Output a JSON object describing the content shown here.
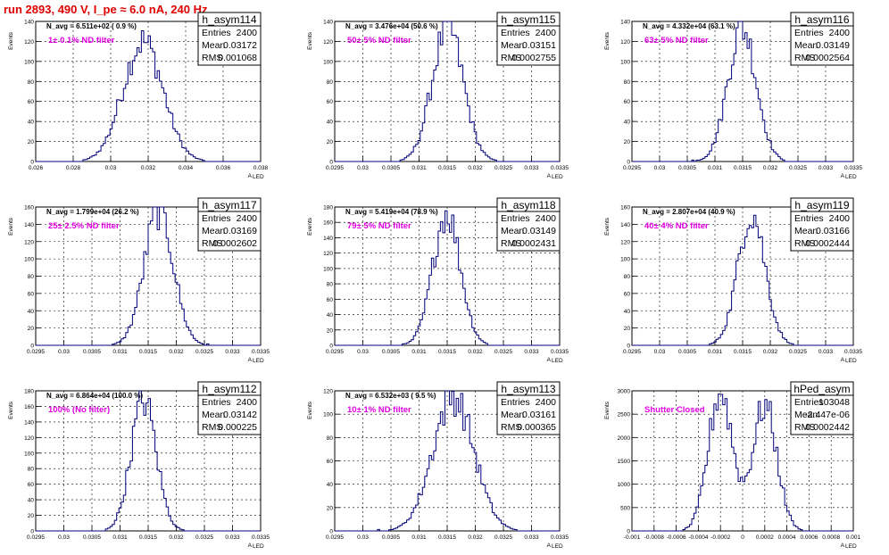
{
  "header": {
    "title": "run 2893,   490 V, I_pe ≈ 6.0 nA, 240 Hz"
  },
  "colors": {
    "histogram_line": "#00007a",
    "title_text": "#e00000",
    "filter_label": "#e000e0",
    "grid": "#000000"
  },
  "stats_labels": {
    "entries": "Entries",
    "mean": "Mean",
    "rms": "RMS"
  },
  "chart_data": [
    {
      "type": "histogram",
      "name": "h_asym114",
      "ylabel": "Events",
      "xlabel": "A",
      "xlabel_sub": "LED",
      "xlim": [
        0.026,
        0.038
      ],
      "ylim": [
        0,
        140
      ],
      "xticks": [
        "0.026",
        "0.028",
        "0.03",
        "0.032",
        "0.034",
        "0.036",
        "0.038"
      ],
      "yticks": [
        "0",
        "20",
        "40",
        "60",
        "80",
        "100",
        "120",
        "140"
      ],
      "stats": {
        "entries": "2400",
        "mean": "0.03172",
        "rms": "0.001068"
      },
      "n_avg": "N_avg = 6.511e+02 ( 0.9 %)",
      "filter": "1± 0.1% ND filter",
      "mean": 0.03172,
      "rms": 0.001068,
      "peak": 125,
      "grid": true
    },
    {
      "type": "histogram",
      "name": "h_asym115",
      "ylabel": "Events",
      "xlabel": "A",
      "xlabel_sub": "LED",
      "xlim": [
        0.0295,
        0.0335
      ],
      "ylim": [
        0,
        140
      ],
      "xticks": [
        "0.0295",
        "0.03",
        "0.0305",
        "0.031",
        "0.0315",
        "0.032",
        "0.0325",
        "0.033",
        "0.0335"
      ],
      "yticks": [
        "0",
        "20",
        "40",
        "60",
        "80",
        "100",
        "120",
        "140"
      ],
      "stats": {
        "entries": "2400",
        "mean": "0.03151",
        "rms": "0.0002755"
      },
      "n_avg": "N_avg = 3.476e+04 (50.6 %)",
      "filter": "50± 5% ND filter",
      "mean": 0.03151,
      "rms": 0.0002755,
      "peak": 140,
      "grid": true
    },
    {
      "type": "histogram",
      "name": "h_asym116",
      "ylabel": "Events",
      "xlabel": "A",
      "xlabel_sub": "LED",
      "xlim": [
        0.0295,
        0.0335
      ],
      "ylim": [
        0,
        140
      ],
      "xticks": [
        "0.0295",
        "0.03",
        "0.0305",
        "0.031",
        "0.0315",
        "0.032",
        "0.0325",
        "0.033",
        "0.0335"
      ],
      "yticks": [
        "0",
        "20",
        "40",
        "60",
        "80",
        "100",
        "120",
        "140"
      ],
      "stats": {
        "entries": "2400",
        "mean": "0.03149",
        "rms": "0.0002564"
      },
      "n_avg": "N_avg = 4.332e+04 (63.1 %)",
      "filter": "63± 5% ND filter",
      "mean": 0.03149,
      "rms": 0.0002564,
      "peak": 140,
      "grid": true
    },
    {
      "type": "histogram",
      "name": "h_asym117",
      "ylabel": "Events",
      "xlabel": "A",
      "xlabel_sub": "LED",
      "xlim": [
        0.0295,
        0.0335
      ],
      "ylim": [
        0,
        160
      ],
      "xticks": [
        "0.0295",
        "0.03",
        "0.0305",
        "0.031",
        "0.0315",
        "0.032",
        "0.0325",
        "0.033",
        "0.0335"
      ],
      "yticks": [
        "0",
        "20",
        "40",
        "60",
        "80",
        "100",
        "120",
        "140",
        "160"
      ],
      "stats": {
        "entries": "2400",
        "mean": "0.03169",
        "rms": "0.0002602"
      },
      "n_avg": "N_avg = 1.799e+04 (26.2 %)",
      "filter": "25± 2.5% ND filter",
      "mean": 0.03169,
      "rms": 0.0002602,
      "peak": 162,
      "grid": true
    },
    {
      "type": "histogram",
      "name": "h_asym118",
      "ylabel": "Events",
      "xlabel": "A",
      "xlabel_sub": "LED",
      "xlim": [
        0.0295,
        0.0335
      ],
      "ylim": [
        0,
        180
      ],
      "xticks": [
        "0.0295",
        "0.03",
        "0.0305",
        "0.031",
        "0.0315",
        "0.032",
        "0.0325",
        "0.033",
        "0.0335"
      ],
      "yticks": [
        "0",
        "20",
        "40",
        "60",
        "80",
        "100",
        "120",
        "140",
        "160",
        "180"
      ],
      "stats": {
        "entries": "2400",
        "mean": "0.03149",
        "rms": "0.0002431"
      },
      "n_avg": "N_avg = 5.419e+04 (78.9 %)",
      "filter": "79± 5% ND filter",
      "mean": 0.03149,
      "rms": 0.0002431,
      "peak": 180,
      "grid": true
    },
    {
      "type": "histogram",
      "name": "h_asym119",
      "ylabel": "Events",
      "xlabel": "A",
      "xlabel_sub": "LED",
      "xlim": [
        0.0295,
        0.0335
      ],
      "ylim": [
        0,
        160
      ],
      "xticks": [
        "0.0295",
        "0.03",
        "0.0305",
        "0.031",
        "0.0315",
        "0.032",
        "0.0325",
        "0.033",
        "0.0335"
      ],
      "yticks": [
        "0",
        "20",
        "40",
        "60",
        "80",
        "100",
        "120",
        "140",
        "160"
      ],
      "stats": {
        "entries": "2400",
        "mean": "0.03166",
        "rms": "0.0002444"
      },
      "n_avg": "N_avg = 2.807e+04 (40.9 %)",
      "filter": "40± 4% ND filter",
      "mean": 0.03166,
      "rms": 0.0002444,
      "peak": 160,
      "grid": true
    },
    {
      "type": "histogram",
      "name": "h_asym112",
      "ylabel": "Events",
      "xlabel": "A",
      "xlabel_sub": "LED",
      "xlim": [
        0.0295,
        0.0335
      ],
      "ylim": [
        0,
        180
      ],
      "xticks": [
        "0.0295",
        "0.03",
        "0.0305",
        "0.031",
        "0.0315",
        "0.032",
        "0.0325",
        "0.033",
        "0.0335"
      ],
      "yticks": [
        "0",
        "20",
        "40",
        "60",
        "80",
        "100",
        "120",
        "140",
        "160",
        "180"
      ],
      "stats": {
        "entries": "2400",
        "mean": "0.03142",
        "rms": "0.000225"
      },
      "n_avg": "N_avg = 6.864e+04 (100.0 %)",
      "filter": "100% (No filter)",
      "mean": 0.03142,
      "rms": 0.000225,
      "peak": 175,
      "grid": true
    },
    {
      "type": "histogram",
      "name": "h_asym113",
      "ylabel": "Events",
      "xlabel": "A",
      "xlabel_sub": "LED",
      "xlim": [
        0.0295,
        0.0335
      ],
      "ylim": [
        0,
        120
      ],
      "xticks": [
        "0.0295",
        "0.03",
        "0.0305",
        "0.031",
        "0.0315",
        "0.032",
        "0.0325",
        "0.033",
        "0.0335"
      ],
      "yticks": [
        "0",
        "20",
        "40",
        "60",
        "80",
        "100",
        "120"
      ],
      "stats": {
        "entries": "2400",
        "mean": "0.03161",
        "rms": "0.000365"
      },
      "n_avg": "N_avg = 6.532e+03 ( 9.5 %)",
      "filter": "10± 1% ND filter",
      "mean": 0.03161,
      "rms": 0.000365,
      "peak": 120,
      "grid": true
    },
    {
      "type": "histogram",
      "name": "hPed_asym",
      "ylabel": "Events",
      "xlabel": "A",
      "xlabel_sub": "LED",
      "xlim": [
        -0.001,
        0.001
      ],
      "ylim": [
        0,
        3000
      ],
      "xticks": [
        "-0.001",
        "-0.0008",
        "-0.0006",
        "-0.0004",
        "-0.0002",
        "0",
        "0.0002",
        "0.0004",
        "0.0006",
        "0.0008",
        "0.001"
      ],
      "yticks": [
        "0",
        "500",
        "1000",
        "1500",
        "2000",
        "2500",
        "3000"
      ],
      "stats": {
        "entries": "103048",
        "mean": "-2.447e-06",
        "rms": "0.0002442"
      },
      "n_avg": "",
      "filter": "Shutter Closed",
      "mean": -2.447e-06,
      "rms": 0.0002442,
      "peak": 3100,
      "grid": true,
      "bimodal": {
        "peaks": [
          -0.0002,
          0.0002
        ],
        "heights": [
          3100,
          2800
        ],
        "sigma": 0.00011,
        "dip": 2450
      }
    }
  ]
}
